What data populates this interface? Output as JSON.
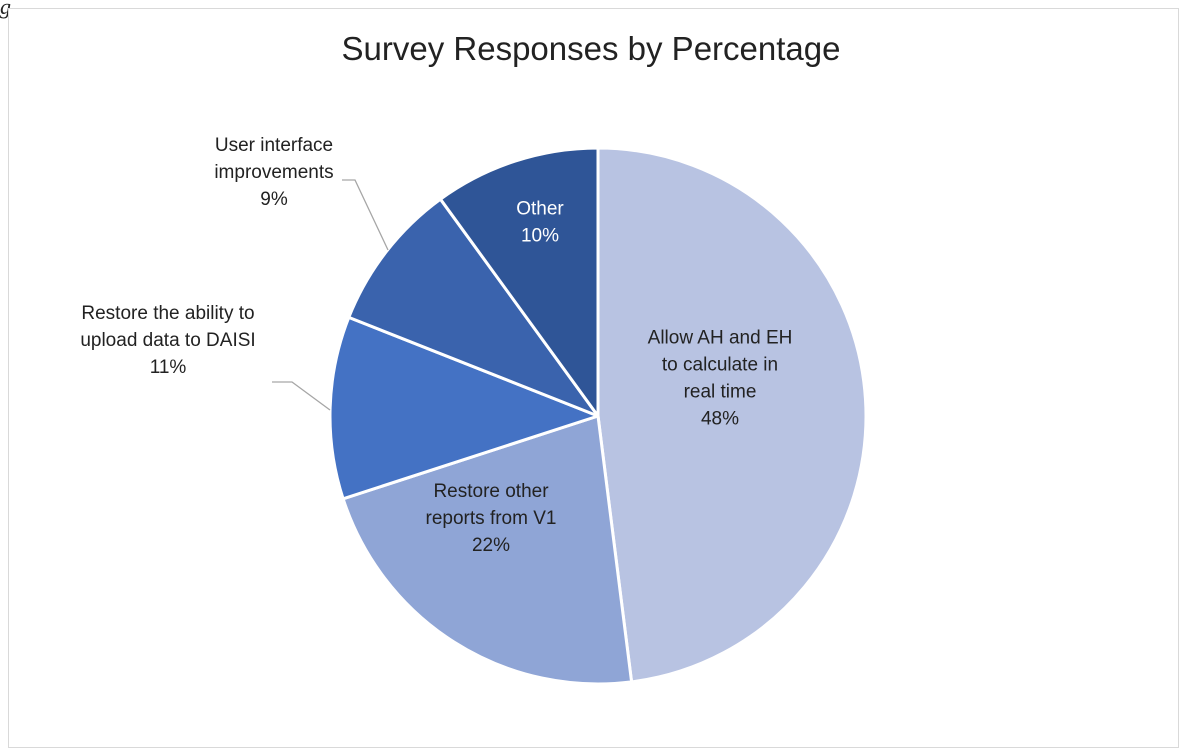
{
  "fragment_text": "g",
  "chart_data": {
    "type": "pie",
    "title": "Survey Responses by Percentage",
    "start_angle_deg": 0,
    "direction": "clockwise",
    "slices": [
      {
        "lines": [
          "Allow AH and EH",
          "to calculate in",
          "real time"
        ],
        "pct_label": "48%",
        "value": 48,
        "color": "#b8c3e2",
        "text_color": "#222222"
      },
      {
        "lines": [
          "Restore other",
          "reports from V1"
        ],
        "pct_label": "22%",
        "value": 22,
        "color": "#8fa5d6",
        "text_color": "#222222"
      },
      {
        "lines": [
          "Restore the ability to",
          "upload data to DAISI"
        ],
        "pct_label": "11%",
        "value": 11,
        "color": "#4472c4",
        "text_color": "#222222"
      },
      {
        "lines": [
          "User interface",
          "improvements"
        ],
        "pct_label": "9%",
        "value": 9,
        "color": "#3a63ad",
        "text_color": "#222222"
      },
      {
        "lines": [
          "Other"
        ],
        "pct_label": "10%",
        "value": 10,
        "color": "#2f5597",
        "text_color": "#ffffff"
      }
    ],
    "legend": "none"
  }
}
